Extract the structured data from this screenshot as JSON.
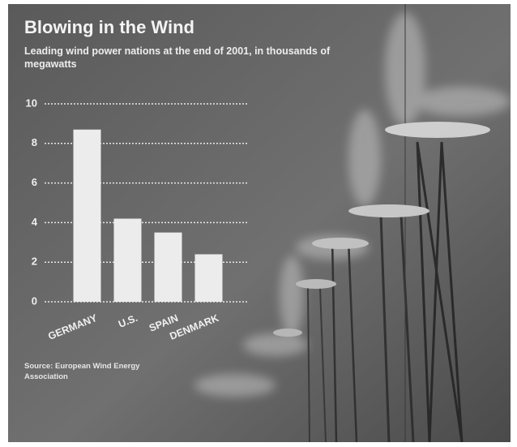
{
  "chart_data": {
    "type": "bar",
    "title": "Blowing in the Wind",
    "subtitle": "Leading wind power nations at the end of 2001, in thousands of megawatts",
    "categories": [
      "GERMANY",
      "U.S.",
      "SPAIN",
      "DENMARK"
    ],
    "values": [
      8.7,
      4.2,
      3.5,
      2.4
    ],
    "color": "#ececec",
    "ylim": [
      0,
      10
    ],
    "yticks": [
      0,
      2,
      4,
      6,
      8,
      10
    ],
    "grid": true,
    "source": "Source: European Wind Energy Association"
  }
}
